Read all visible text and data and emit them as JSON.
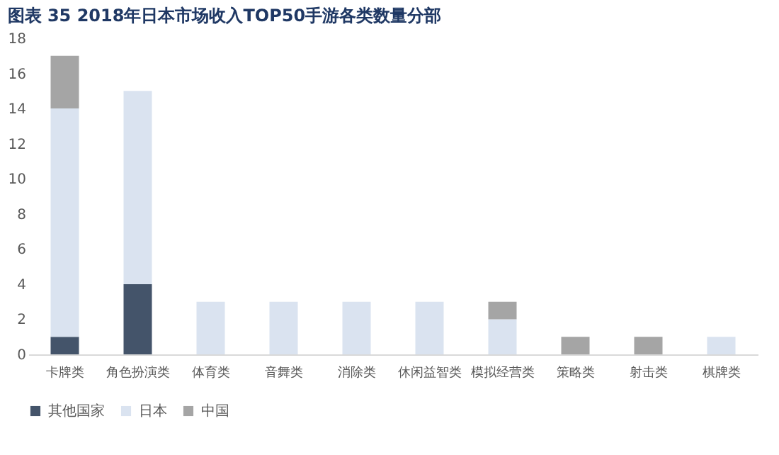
{
  "chart_data": {
    "type": "bar",
    "title": "图表 35  2018年日本市场收入TOP50手游各类数量分部",
    "stacked": true,
    "categories": [
      "卡牌类",
      "角色扮演类",
      "体育类",
      "音舞类",
      "消除类",
      "休闲益智类",
      "模拟经营类",
      "策略类",
      "射击类",
      "棋牌类"
    ],
    "series": [
      {
        "name": "其他国家",
        "color": "#44546a",
        "values": [
          1,
          4,
          0,
          0,
          0,
          0,
          0,
          0,
          0,
          0
        ]
      },
      {
        "name": "日本",
        "color": "#dae3f0",
        "values": [
          13,
          11,
          3,
          3,
          3,
          3,
          2,
          0,
          0,
          1
        ]
      },
      {
        "name": "中国",
        "color": "#a5a5a5",
        "values": [
          3,
          0,
          0,
          0,
          0,
          0,
          1,
          1,
          1,
          0
        ]
      }
    ],
    "ylim": [
      0,
      18
    ],
    "yticks": [
      0,
      2,
      4,
      6,
      8,
      10,
      12,
      14,
      16,
      18
    ],
    "grid": false,
    "legend": "bottom"
  }
}
